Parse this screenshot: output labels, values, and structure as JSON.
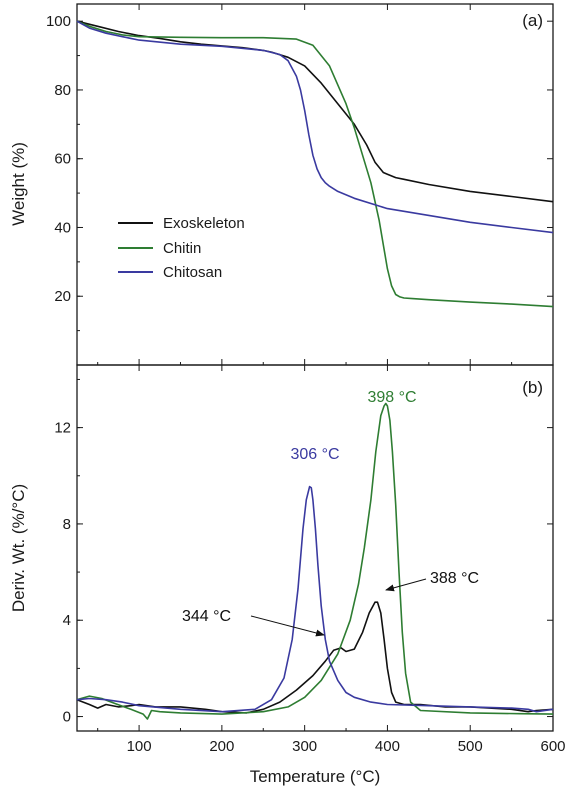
{
  "colors": {
    "exoskeleton": "#111111",
    "chitin": "#2e7d32",
    "chitosan": "#3a3aa0"
  },
  "xaxis": {
    "label": "Temperature (°C)",
    "lim": [
      25,
      600
    ],
    "ticks": [
      100,
      200,
      300,
      400,
      500,
      600
    ]
  },
  "chart_data": [
    {
      "type": "line",
      "panel_label": "(a)",
      "ylabel": "Weight (%)",
      "xlim": [
        25,
        600
      ],
      "ylim": [
        0,
        105
      ],
      "yticks": [
        20,
        40,
        60,
        80,
        100
      ],
      "legend": {
        "placement": "center-left",
        "entries": [
          "Exoskeleton",
          "Chitin",
          "Chitosan"
        ]
      },
      "series": [
        {
          "name": "Exoskeleton",
          "color": "#111111",
          "x": [
            25,
            50,
            75,
            100,
            125,
            150,
            175,
            200,
            225,
            250,
            260,
            280,
            300,
            320,
            340,
            360,
            375,
            385,
            395,
            400,
            410,
            420,
            450,
            500,
            550,
            600
          ],
          "y": [
            100,
            98.5,
            97,
            95.8,
            95,
            94,
            93.3,
            92.8,
            92.3,
            91.5,
            91,
            89.5,
            87,
            82,
            76,
            70,
            64,
            59,
            56,
            55.5,
            54.5,
            54,
            52.5,
            50.5,
            49,
            47.5
          ]
        },
        {
          "name": "Chitin",
          "color": "#2e7d32",
          "x": [
            25,
            40,
            60,
            80,
            100,
            150,
            200,
            250,
            290,
            310,
            330,
            350,
            360,
            370,
            380,
            390,
            395,
            400,
            405,
            410,
            415,
            420,
            430,
            450,
            500,
            550,
            600
          ],
          "y": [
            100,
            98.5,
            97,
            96,
            95.5,
            95.3,
            95.2,
            95.2,
            94.8,
            93,
            87,
            76,
            69,
            61,
            53,
            42,
            35,
            28,
            23,
            20.5,
            19.8,
            19.5,
            19.3,
            19,
            18.3,
            17.7,
            17
          ]
        },
        {
          "name": "Chitosan",
          "color": "#3a3aa0",
          "x": [
            25,
            40,
            60,
            80,
            100,
            150,
            200,
            250,
            270,
            280,
            290,
            295,
            300,
            305,
            310,
            315,
            320,
            325,
            330,
            340,
            360,
            400,
            450,
            500,
            550,
            600
          ],
          "y": [
            100,
            98,
            96.5,
            95.5,
            94.5,
            93.3,
            92.7,
            91.5,
            90.3,
            88.5,
            84,
            80,
            74,
            67,
            61,
            57,
            54.5,
            53,
            52,
            50.5,
            48.5,
            45.5,
            43.5,
            41.5,
            40,
            38.5
          ]
        }
      ]
    },
    {
      "type": "line",
      "panel_label": "(b)",
      "ylabel": "Deriv. Wt. (%/°C)",
      "xlim": [
        25,
        600
      ],
      "ylim": [
        -0.6,
        14.6
      ],
      "yticks": [
        0,
        4,
        8,
        12
      ],
      "series": [
        {
          "name": "Exoskeleton",
          "color": "#111111",
          "x": [
            25,
            40,
            50,
            60,
            75,
            90,
            100,
            120,
            150,
            180,
            200,
            230,
            250,
            270,
            290,
            310,
            325,
            335,
            344,
            350,
            360,
            370,
            378,
            385,
            388,
            392,
            396,
            400,
            405,
            410,
            420,
            440,
            470,
            500,
            550,
            570,
            580,
            600
          ],
          "y": [
            0.7,
            0.5,
            0.35,
            0.5,
            0.4,
            0.45,
            0.5,
            0.4,
            0.4,
            0.3,
            0.2,
            0.15,
            0.3,
            0.6,
            1.1,
            1.7,
            2.3,
            2.75,
            2.85,
            2.7,
            2.8,
            3.5,
            4.3,
            4.75,
            4.75,
            4.3,
            3.2,
            2.0,
            1.0,
            0.6,
            0.5,
            0.5,
            0.4,
            0.4,
            0.3,
            0.2,
            0.25,
            0.3
          ]
        },
        {
          "name": "Chitin",
          "color": "#2e7d32",
          "x": [
            25,
            40,
            55,
            70,
            90,
            105,
            110,
            115,
            125,
            150,
            200,
            250,
            280,
            300,
            320,
            340,
            355,
            365,
            372,
            380,
            386,
            392,
            396,
            398,
            400,
            403,
            406,
            410,
            414,
            418,
            422,
            428,
            440,
            500,
            560,
            600
          ],
          "y": [
            0.7,
            0.85,
            0.75,
            0.55,
            0.3,
            0.1,
            -0.1,
            0.25,
            0.2,
            0.15,
            0.1,
            0.2,
            0.4,
            0.8,
            1.5,
            2.6,
            4.0,
            5.5,
            7.0,
            9.0,
            11.0,
            12.5,
            12.9,
            13.0,
            12.9,
            12.3,
            11.0,
            8.8,
            6.0,
            3.5,
            1.8,
            0.6,
            0.25,
            0.15,
            0.12,
            0.1
          ]
        },
        {
          "name": "Chitosan",
          "color": "#3a3aa0",
          "x": [
            25,
            40,
            60,
            80,
            100,
            150,
            200,
            240,
            260,
            275,
            285,
            292,
            298,
            302,
            306,
            308,
            310,
            313,
            316,
            320,
            325,
            330,
            340,
            350,
            360,
            380,
            400,
            450,
            500,
            550,
            570,
            580,
            600
          ],
          "y": [
            0.7,
            0.75,
            0.7,
            0.6,
            0.45,
            0.3,
            0.2,
            0.3,
            0.7,
            1.6,
            3.2,
            5.3,
            7.8,
            9.0,
            9.55,
            9.5,
            9.0,
            7.8,
            6.3,
            4.6,
            3.2,
            2.3,
            1.5,
            1.0,
            0.8,
            0.6,
            0.5,
            0.45,
            0.4,
            0.35,
            0.3,
            0.2,
            0.3
          ]
        }
      ],
      "annotations": [
        {
          "text": "306 °C",
          "series": "Chitosan",
          "x": 306,
          "y": 9.55
        },
        {
          "text": "398 °C",
          "series": "Chitin",
          "x": 398,
          "y": 13.0
        },
        {
          "text": "388 °C",
          "series": "Exoskeleton",
          "x": 388,
          "y": 4.75
        },
        {
          "text": "344 °C",
          "series": "Exoskeleton",
          "x": 344,
          "y": 2.85
        }
      ]
    }
  ]
}
